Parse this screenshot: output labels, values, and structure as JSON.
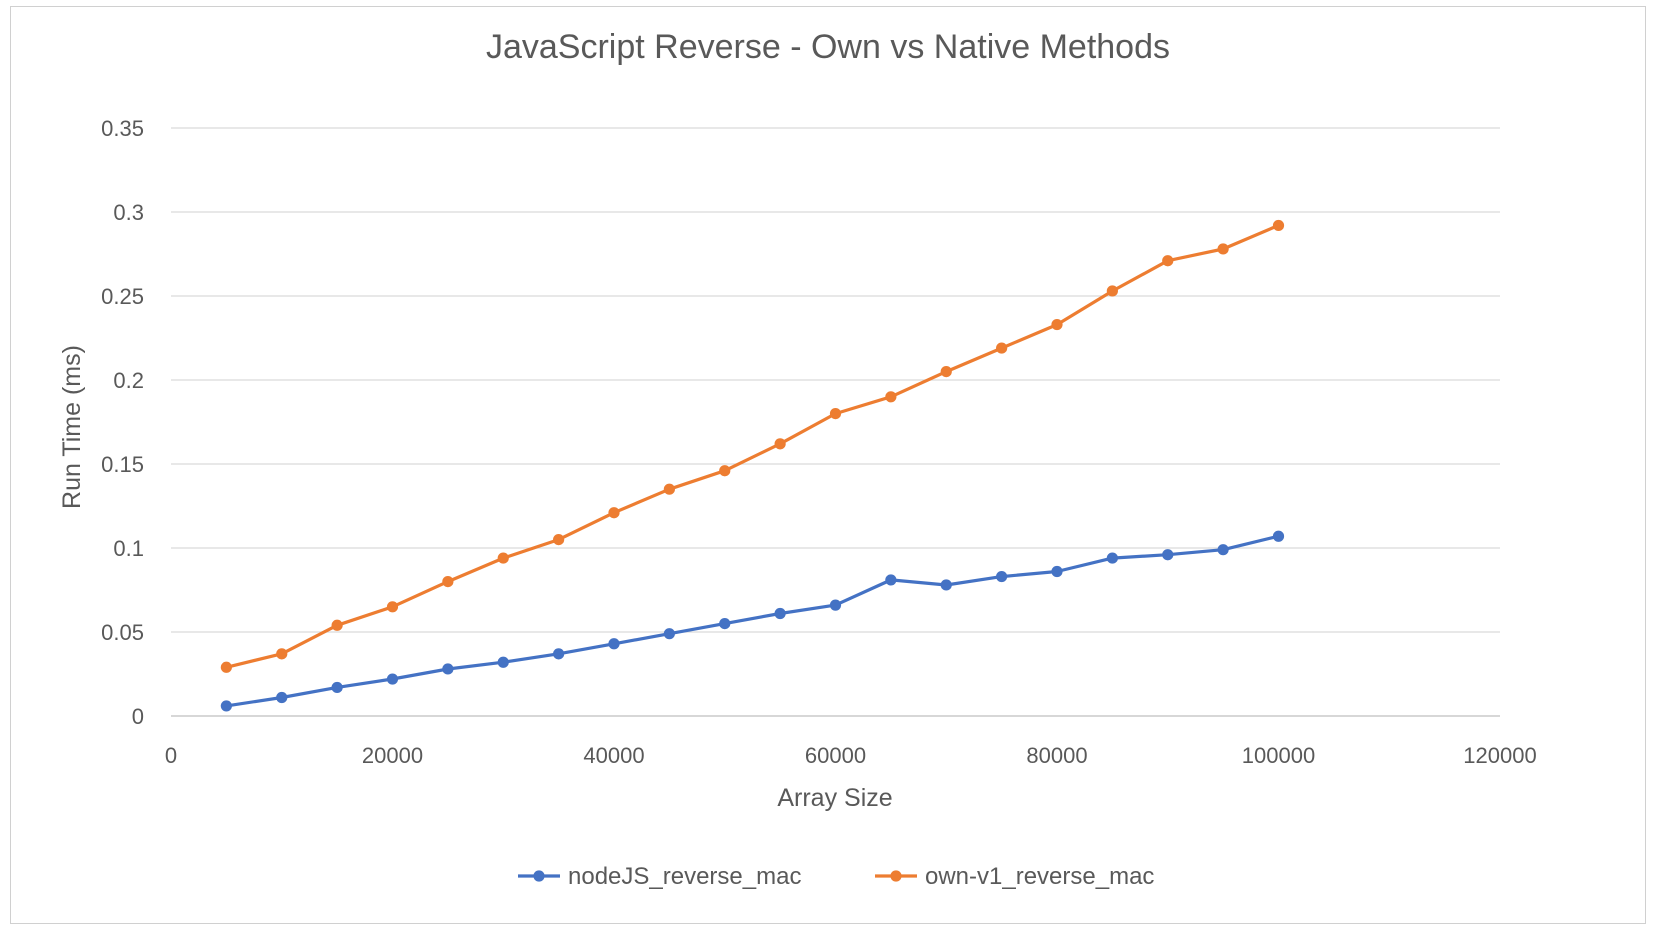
{
  "chart_data": {
    "type": "line",
    "title": "JavaScript Reverse - Own vs Native Methods",
    "xlabel": "Array Size",
    "ylabel": "Run Time (ms)",
    "xlim": [
      0,
      120000
    ],
    "ylim": [
      0,
      0.35
    ],
    "x_ticks": [
      "0",
      "20000",
      "40000",
      "60000",
      "80000",
      "100000",
      "120000"
    ],
    "y_ticks": [
      "0",
      "0.05",
      "0.1",
      "0.15",
      "0.2",
      "0.25",
      "0.3",
      "0.35"
    ],
    "grid": "horizontal",
    "legend": "bottom",
    "x": [
      5000,
      10000,
      15000,
      20000,
      25000,
      30000,
      35000,
      40000,
      45000,
      50000,
      55000,
      60000,
      65000,
      70000,
      75000,
      80000,
      85000,
      90000,
      95000,
      100000
    ],
    "series": [
      {
        "name": "nodeJS_reverse_mac",
        "color": "#4472C4",
        "values": [
          0.006,
          0.011,
          0.017,
          0.022,
          0.028,
          0.032,
          0.037,
          0.043,
          0.049,
          0.055,
          0.061,
          0.066,
          0.081,
          0.078,
          0.083,
          0.086,
          0.094,
          0.096,
          0.099,
          0.107
        ]
      },
      {
        "name": "own-v1_reverse_mac",
        "color": "#ED7D31",
        "values": [
          0.029,
          0.037,
          0.054,
          0.065,
          0.08,
          0.094,
          0.105,
          0.121,
          0.135,
          0.146,
          0.162,
          0.18,
          0.19,
          0.205,
          0.219,
          0.233,
          0.253,
          0.271,
          0.278,
          0.292
        ]
      }
    ]
  }
}
